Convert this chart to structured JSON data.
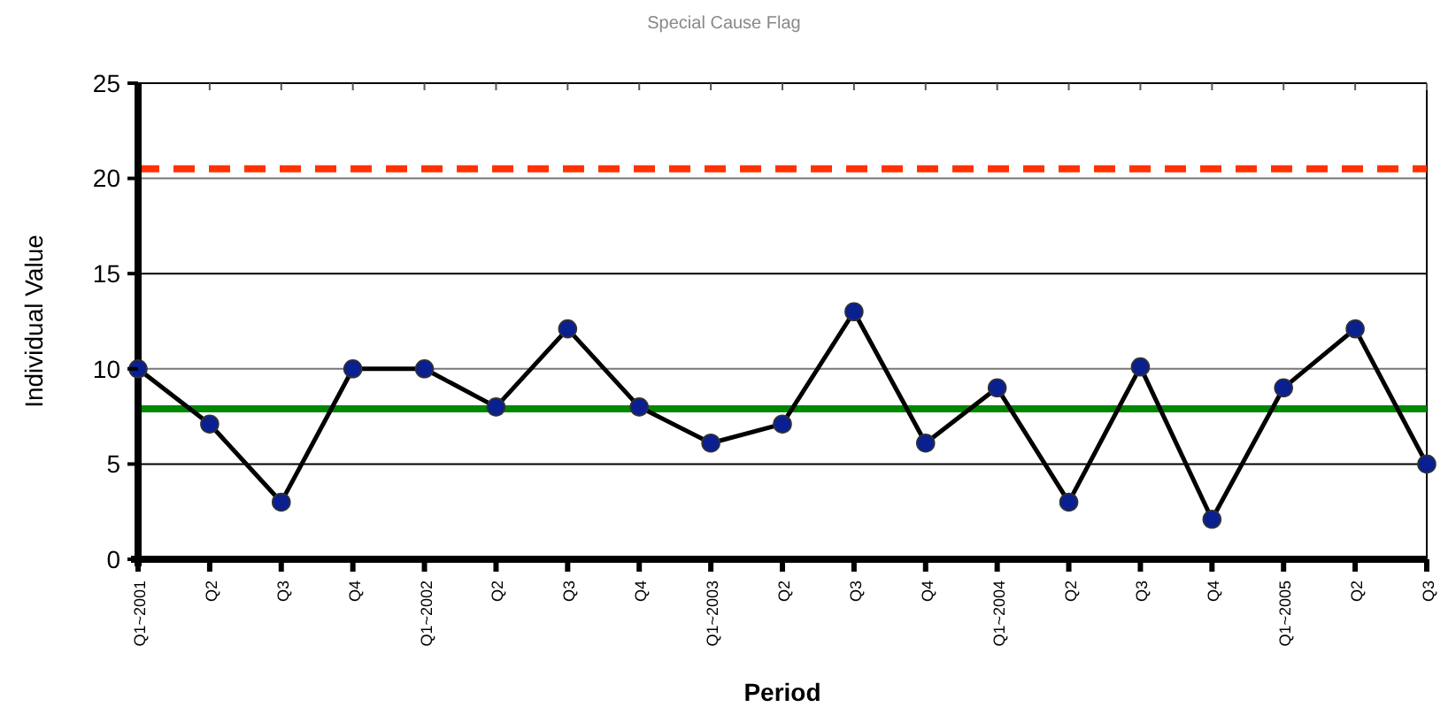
{
  "chart_data": {
    "type": "line",
    "title": "Special Cause Flag",
    "xlabel": "Period",
    "ylabel": "Individual Value",
    "categories": [
      "Q1~2001",
      "Q2",
      "Q3",
      "Q4",
      "Q1~2002",
      "Q2",
      "Q3",
      "Q4",
      "Q1~2003",
      "Q2",
      "Q3",
      "Q4",
      "Q1~2004",
      "Q2",
      "Q3",
      "Q4",
      "Q1~2005",
      "Q2",
      "Q3"
    ],
    "series": [
      {
        "color": "#000000",
        "values": [
          10,
          7.1,
          3,
          10,
          10,
          8,
          12.1,
          8,
          6.1,
          7.1,
          13,
          6.1,
          9,
          3,
          10.1,
          2.1,
          9,
          12.1,
          5
        ]
      }
    ],
    "ylim": [
      0,
      25
    ],
    "yticks": [
      0,
      5,
      10,
      15,
      20,
      25
    ],
    "grid": "y",
    "marker": "circle",
    "line_style": "solid",
    "ref_lines": [
      {
        "axis": "y",
        "value": 20.5,
        "color": "#ff3300",
        "line_style": "dashed"
      },
      {
        "axis": "y",
        "value": 7.9,
        "color": "#008800",
        "line_style": "solid"
      }
    ]
  }
}
